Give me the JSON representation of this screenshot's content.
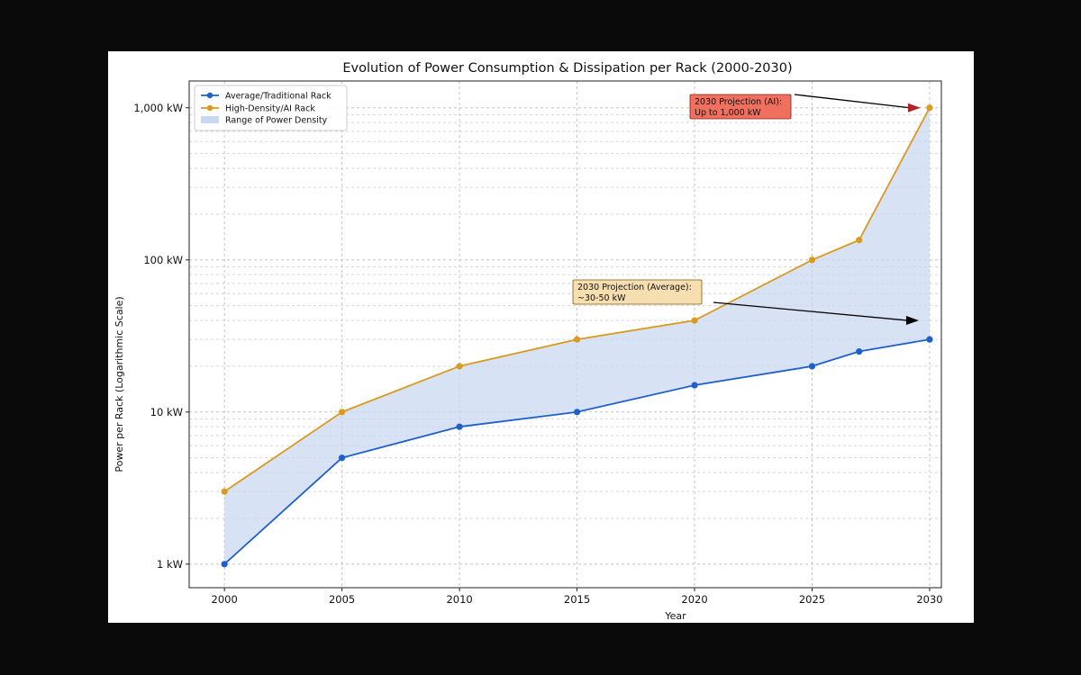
{
  "chart_data": {
    "type": "line",
    "title": "Evolution of Power Consumption & Dissipation per Rack (2000-2030)",
    "xlabel": "Year",
    "ylabel": "Power per Rack (Logarithmic Scale)",
    "xlim": [
      1998.5,
      2030.5
    ],
    "ylim": [
      0.7,
      1500
    ],
    "yscale": "log",
    "grid": true,
    "legend_position": "top-left",
    "x_ticks": [
      2000,
      2005,
      2010,
      2015,
      2020,
      2025,
      2030
    ],
    "x_tick_labels": [
      "2000",
      "2005",
      "2010",
      "2015",
      "2020",
      "2025",
      "2030"
    ],
    "y_ticks": [
      1,
      10,
      100,
      1000
    ],
    "y_tick_labels": [
      "1 kW",
      "10 kW",
      "100 kW",
      "1,000 kW"
    ],
    "x": [
      2000,
      2005,
      2010,
      2015,
      2020,
      2025,
      2027,
      2030
    ],
    "series": [
      {
        "name": "Average/Traditional Rack",
        "color": "#1f5fc8",
        "values": [
          1,
          5,
          8,
          10,
          15,
          20,
          25,
          30
        ]
      },
      {
        "name": "High-Density/AI Rack",
        "color": "#d99a1f",
        "values": [
          3,
          10,
          20,
          30,
          40,
          100,
          135,
          1000
        ]
      }
    ],
    "fill": {
      "name": "Range of Power Density",
      "color": "#c9d8f2",
      "between": [
        "Average/Traditional Rack",
        "High-Density/AI Rack"
      ]
    },
    "annotations": [
      {
        "lines": [
          "2030 Projection (AI):",
          "Up to 1,000 kW"
        ],
        "target": [
          2030,
          1000
        ],
        "box_color": "#f07060",
        "border_color": "#8b1a10",
        "arrow_color": "#b22222"
      },
      {
        "lines": [
          "2030 Projection (Average):",
          "~30-50 kW"
        ],
        "target": [
          2030,
          40
        ],
        "box_color": "#f7deb0",
        "border_color": "#7a5a1a",
        "arrow_color": "#000000"
      }
    ]
  }
}
